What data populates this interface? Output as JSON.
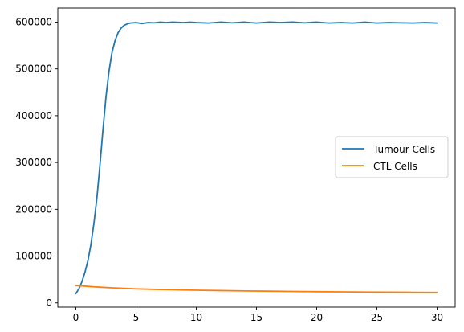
{
  "chart_data": {
    "type": "line",
    "title": "",
    "xlabel": "",
    "ylabel": "",
    "xlim": [
      -1.5,
      31.5
    ],
    "ylim": [
      -9000,
      630000
    ],
    "xticks": [
      0,
      5,
      10,
      15,
      20,
      25,
      30
    ],
    "xtick_labels": [
      "0",
      "5",
      "10",
      "15",
      "20",
      "25",
      "30"
    ],
    "yticks": [
      0,
      100000,
      200000,
      300000,
      400000,
      500000,
      600000
    ],
    "ytick_labels": [
      "0",
      "100000",
      "200000",
      "300000",
      "400000",
      "500000",
      "600000"
    ],
    "grid": false,
    "legend_position": "center-right",
    "series": [
      {
        "name": "Tumour Cells",
        "color": "#1f77b4",
        "x": [
          0,
          0.25,
          0.5,
          0.75,
          1,
          1.25,
          1.5,
          1.75,
          2,
          2.25,
          2.5,
          2.75,
          3,
          3.25,
          3.5,
          3.75,
          4,
          4.25,
          4.5,
          4.75,
          5,
          5.5,
          6,
          6.5,
          7,
          7.5,
          8,
          8.5,
          9,
          9.5,
          10,
          11,
          12,
          13,
          14,
          15,
          16,
          17,
          18,
          19,
          20,
          21,
          22,
          23,
          24,
          25,
          26,
          27,
          28,
          29,
          30
        ],
        "y": [
          20000,
          30000,
          45000,
          65000,
          90000,
          125000,
          170000,
          225000,
          295000,
          370000,
          440000,
          495000,
          535000,
          560000,
          577000,
          587000,
          593000,
          596000,
          598000,
          598500,
          599000,
          597000,
          599000,
          598500,
          600000,
          599000,
          600000,
          599500,
          599000,
          600000,
          599000,
          598000,
          600000,
          598500,
          600000,
          598000,
          600000,
          599000,
          600000,
          598500,
          600000,
          598000,
          599000,
          598000,
          600000,
          598000,
          599000,
          598500,
          598000,
          599000,
          598000
        ]
      },
      {
        "name": "CTL Cells",
        "color": "#ff7f0e",
        "x": [
          0,
          0.5,
          1,
          1.5,
          2,
          3,
          4,
          5,
          6,
          7,
          8,
          9,
          10,
          12,
          14,
          16,
          18,
          20,
          22,
          24,
          26,
          28,
          30
        ],
        "y": [
          37000,
          36200,
          35300,
          34400,
          33600,
          32200,
          31000,
          30000,
          29300,
          28700,
          28100,
          27600,
          27100,
          26300,
          25600,
          25000,
          24500,
          24000,
          23600,
          23200,
          22900,
          22600,
          22400
        ]
      }
    ]
  }
}
